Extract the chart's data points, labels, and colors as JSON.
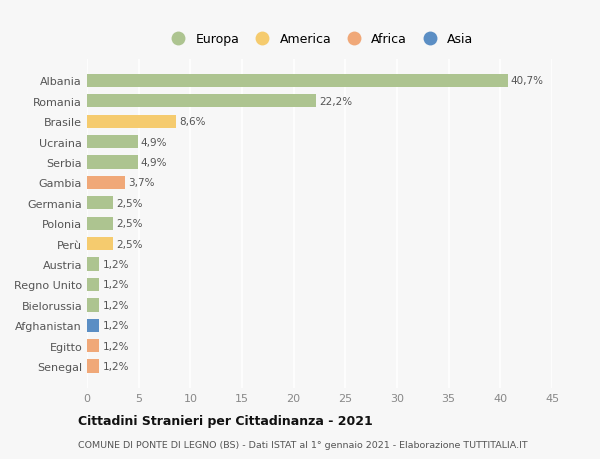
{
  "title": "Cittadini Stranieri per Cittadinanza - 2021",
  "subtitle": "COMUNE DI PONTE DI LEGNO (BS) - Dati ISTAT al 1° gennaio 2021 - Elaborazione TUTTITALIA.IT",
  "countries": [
    "Albania",
    "Romania",
    "Brasile",
    "Ucraina",
    "Serbia",
    "Gambia",
    "Germania",
    "Polonia",
    "Perù",
    "Austria",
    "Regno Unito",
    "Bielorussia",
    "Afghanistan",
    "Egitto",
    "Senegal"
  ],
  "values": [
    40.7,
    22.2,
    8.6,
    4.9,
    4.9,
    3.7,
    2.5,
    2.5,
    2.5,
    1.2,
    1.2,
    1.2,
    1.2,
    1.2,
    1.2
  ],
  "labels": [
    "40,7%",
    "22,2%",
    "8,6%",
    "4,9%",
    "4,9%",
    "3,7%",
    "2,5%",
    "2,5%",
    "2,5%",
    "1,2%",
    "1,2%",
    "1,2%",
    "1,2%",
    "1,2%",
    "1,2%"
  ],
  "continents": [
    "Europa",
    "Europa",
    "America",
    "Europa",
    "Europa",
    "Africa",
    "Europa",
    "Europa",
    "America",
    "Europa",
    "Europa",
    "Europa",
    "Asia",
    "Africa",
    "Africa"
  ],
  "continent_colors": {
    "Europa": "#adc490",
    "America": "#f5cb6e",
    "Africa": "#f0a878",
    "Asia": "#5b8ec4"
  },
  "legend_order": [
    "Europa",
    "America",
    "Africa",
    "Asia"
  ],
  "xlim": [
    0,
    45
  ],
  "xticks": [
    0,
    5,
    10,
    15,
    20,
    25,
    30,
    35,
    40,
    45
  ],
  "background_color": "#f7f7f7",
  "grid_color": "#ffffff",
  "bar_height": 0.65,
  "figsize": [
    6.0,
    4.6
  ],
  "dpi": 100
}
